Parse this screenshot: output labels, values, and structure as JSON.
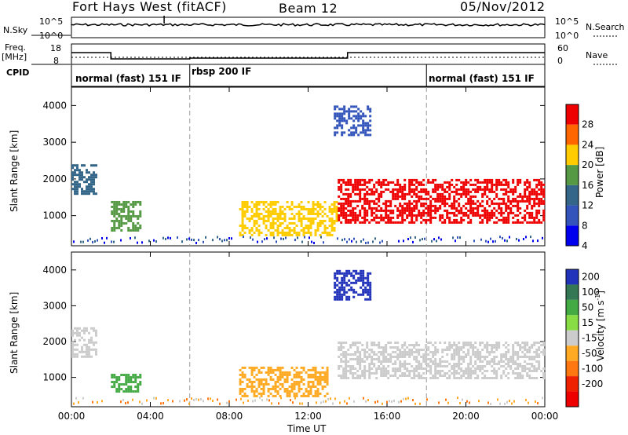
{
  "header": {
    "station": "Fort Hays West (fitACF)",
    "beam": "Beam 12",
    "date": "05/Nov/2012"
  },
  "status_panels": {
    "nsky_label": "N.Sky",
    "nsky_ticks": [
      "10^5",
      "10^0"
    ],
    "nsearch_label": "N.Search",
    "nsearch_ticks": [
      "10^5",
      "10^0"
    ],
    "freq_label": "Freq.",
    "freq_unit": "[MHz]",
    "freq_ticks": [
      "18",
      "8"
    ],
    "nave_label": "Nave",
    "nave_ticks": [
      "60",
      "0"
    ],
    "cpid_label": "CPID",
    "modes": [
      {
        "label": "normal (fast) 151 IF",
        "start_hour": 0,
        "end_hour": 6
      },
      {
        "label": "rbsp 200 IF",
        "start_hour": 6,
        "end_hour": 18
      },
      {
        "label": "normal (fast) 151 IF",
        "start_hour": 18,
        "end_hour": 24
      }
    ],
    "freq_steps": [
      {
        "start_hour": 0,
        "end_hour": 2,
        "mhz": 14.5
      },
      {
        "start_hour": 2,
        "end_hour": 6,
        "mhz": 10.5
      },
      {
        "start_hour": 6,
        "end_hour": 14,
        "mhz": 11
      },
      {
        "start_hour": 14,
        "end_hour": 24,
        "mhz": 14.5
      }
    ]
  },
  "chart_data": [
    {
      "type": "heatmap",
      "name": "power",
      "ylabel": "Slant Range [km]",
      "xlabel": "Time UT",
      "xlim": [
        0,
        24
      ],
      "ylim": [
        180,
        4500
      ],
      "x_ticks": [
        "00:00",
        "04:00",
        "08:00",
        "12:00",
        "16:00",
        "20:00",
        "00:00"
      ],
      "y_ticks": [
        1000,
        2000,
        3000,
        4000
      ],
      "colorbar": {
        "label": "Power [dB]",
        "ticks": [
          4,
          8,
          12,
          16,
          20,
          24,
          28
        ],
        "colors": [
          "#0000ee",
          "#3355bb",
          "#336688",
          "#559944",
          "#ffcc00",
          "#ff6600",
          "#ee0000"
        ]
      },
      "echo_regions": [
        {
          "t_start": 0.0,
          "t_end": 1.3,
          "range_low": 1600,
          "range_high": 2400,
          "level": 10
        },
        {
          "t_start": 2.0,
          "t_end": 3.5,
          "range_low": 600,
          "range_high": 1400,
          "level": 12
        },
        {
          "t_start": 8.5,
          "t_end": 13.5,
          "range_low": 500,
          "range_high": 1400,
          "level": 18
        },
        {
          "t_start": 13.5,
          "t_end": 24.0,
          "range_low": 800,
          "range_high": 2000,
          "level": 24
        },
        {
          "t_start": 13.3,
          "t_end": 15.2,
          "range_low": 3200,
          "range_high": 4000,
          "level": 6
        }
      ]
    },
    {
      "type": "heatmap",
      "name": "velocity",
      "ylabel": "Slant Range [km]",
      "xlabel": "Time UT",
      "xlim": [
        0,
        24
      ],
      "ylim": [
        180,
        4500
      ],
      "x_ticks": [
        "00:00",
        "04:00",
        "08:00",
        "12:00",
        "16:00",
        "20:00",
        "00:00"
      ],
      "y_ticks": [
        1000,
        2000,
        3000,
        4000
      ],
      "colorbar": {
        "label": "Velocity [m s^-1]",
        "ticks": [
          200,
          100,
          50,
          15,
          -15,
          -50,
          -100,
          -200
        ],
        "colors": [
          "#2233bb",
          "#337755",
          "#44aa44",
          "#88dd44",
          "#cccccc",
          "#ffaa22",
          "#ff7711",
          "#ee2200",
          "#ee0000"
        ]
      },
      "echo_regions": [
        {
          "t_start": 0.0,
          "t_end": 1.3,
          "range_low": 1600,
          "range_high": 2400,
          "velocity": 0
        },
        {
          "t_start": 2.0,
          "t_end": 3.5,
          "range_low": 600,
          "range_high": 1100,
          "velocity": 60
        },
        {
          "t_start": 8.5,
          "t_end": 13.0,
          "range_low": 500,
          "range_high": 1300,
          "velocity": -40
        },
        {
          "t_start": 13.5,
          "t_end": 24.0,
          "range_low": 1000,
          "range_high": 2000,
          "velocity": 0
        },
        {
          "t_start": 13.3,
          "t_end": 15.2,
          "range_low": 3200,
          "range_high": 4000,
          "velocity": 200
        }
      ]
    }
  ]
}
